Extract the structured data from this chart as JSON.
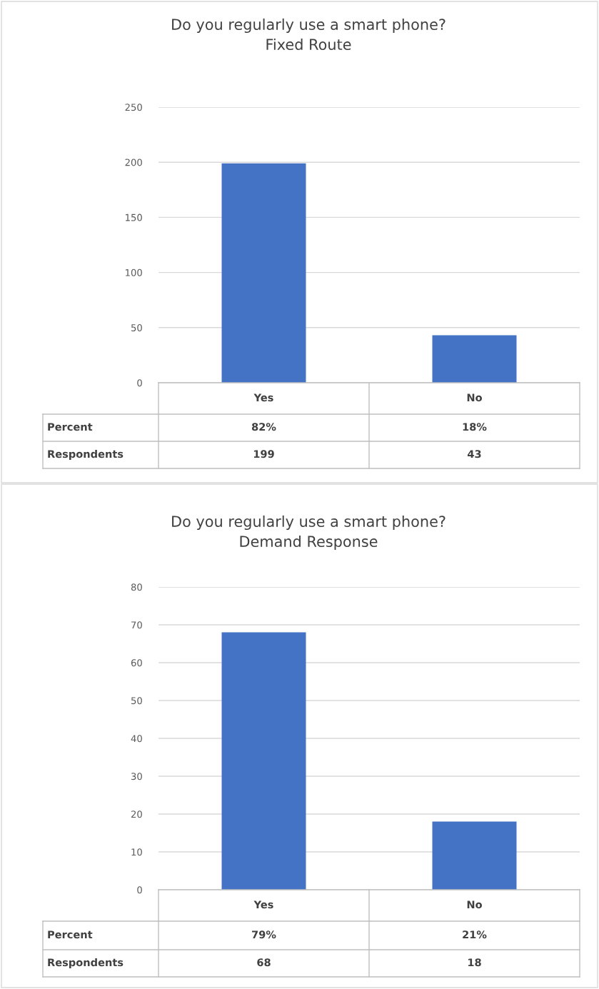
{
  "chart_data": [
    {
      "type": "bar",
      "title": "Do you regularly use a smart phone?\nFixed Route",
      "categories": [
        "Yes",
        "No"
      ],
      "series": [
        {
          "name": "Respondents",
          "color": "#4472c4",
          "values": [
            199,
            43
          ]
        }
      ],
      "data_labels": true,
      "annotations": [
        "Percent",
        "82%",
        "18%"
      ],
      "ylim": [
        0,
        250
      ],
      "yticks": [
        0,
        50,
        100,
        150,
        200,
        250
      ],
      "grid": "y",
      "legend": false
    },
    {
      "type": "bar",
      "title": "Do you regularly use a smart phone?\nDemand Response",
      "categories": [
        "Yes",
        "No"
      ],
      "series": [
        {
          "name": "Respondents",
          "color": "#4472c4",
          "values": [
            68,
            18
          ]
        }
      ],
      "data_labels": true,
      "annotations": [
        "Percent",
        "79%",
        "21%"
      ],
      "ylim": [
        0,
        80
      ],
      "yticks": [
        0,
        10,
        20,
        30,
        40,
        50,
        60,
        70,
        80
      ],
      "grid": "y",
      "legend": false
    }
  ]
}
